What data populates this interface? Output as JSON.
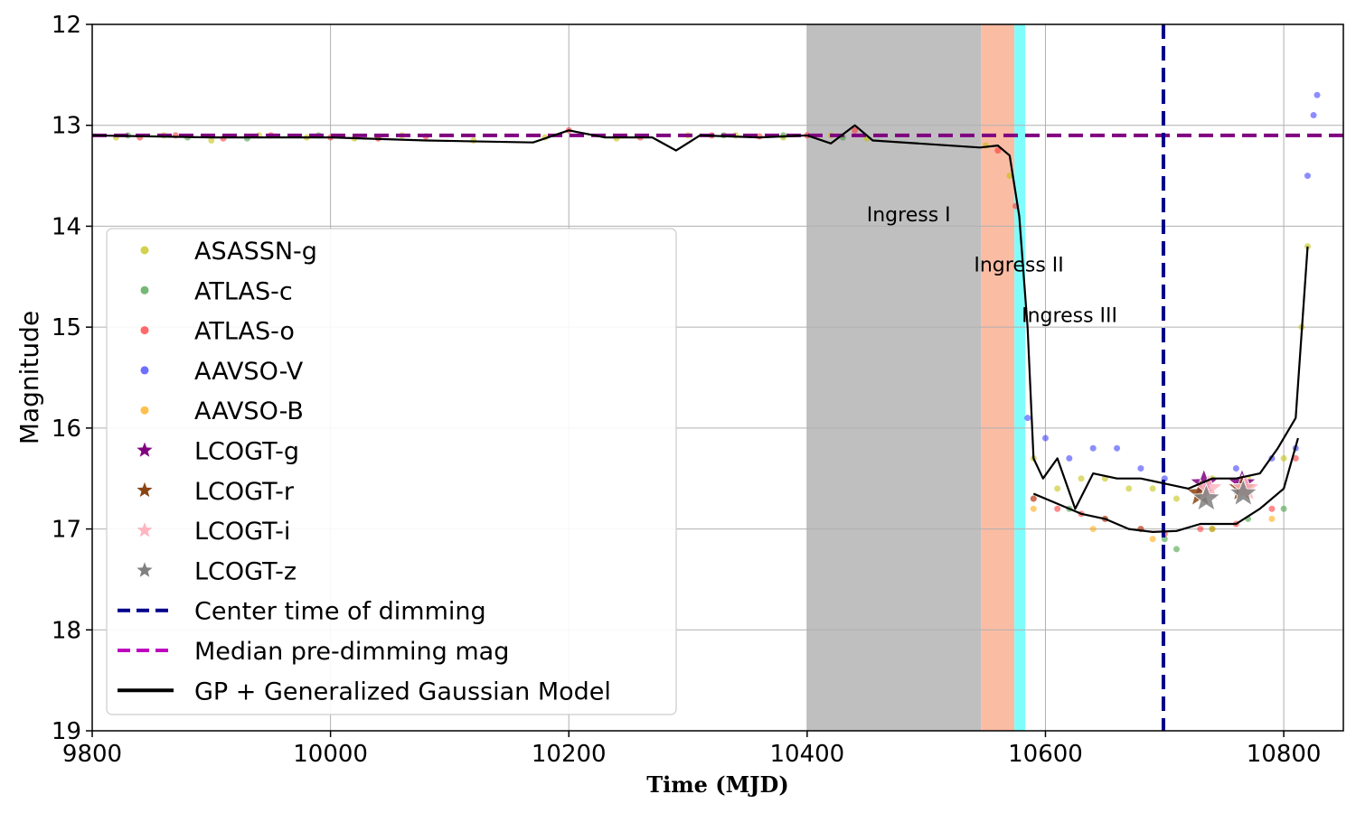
{
  "chart_data": {
    "type": "scatter",
    "xlabel": "Time (MJD)",
    "ylabel": "Magnitude",
    "xlim": [
      9800,
      10850
    ],
    "ylim": [
      12,
      19
    ],
    "y_inverted": true,
    "grid": true,
    "x_ticks": [
      9800,
      10000,
      10200,
      10400,
      10600,
      10800
    ],
    "y_ticks": [
      12,
      13,
      14,
      15,
      16,
      17,
      18,
      19
    ],
    "legend_position": "center-left",
    "regions": [
      {
        "name": "Ingress I",
        "x0": 10400,
        "x1": 10546,
        "color": "#bfbfbf"
      },
      {
        "name": "Ingress II",
        "x0": 10546,
        "x1": 10574,
        "color": "#fbbca4"
      },
      {
        "name": "Ingress III",
        "x0": 10574,
        "x1": 10583,
        "color": "#7ffdfd"
      }
    ],
    "annotations": [
      {
        "text": "Ingress I",
        "x": 10450,
        "y": 13.95
      },
      {
        "text": "Ingress II",
        "x": 10540,
        "y": 14.45
      },
      {
        "text": "Ingress III",
        "x": 10580,
        "y": 14.95
      }
    ],
    "hlines": [
      {
        "name": "Median pre-dimming mag",
        "y": 13.1,
        "color": "#800080",
        "style": "dashed"
      }
    ],
    "vlines": [
      {
        "name": "Center time of dimming",
        "x": 10699,
        "color": "#00008b",
        "style": "dashed"
      }
    ],
    "series": [
      {
        "name": "ASASSN-g",
        "color": "#bfbf00",
        "marker": "circle",
        "points": [
          [
            9820,
            13.12
          ],
          [
            9860,
            13.1
          ],
          [
            9900,
            13.15
          ],
          [
            9940,
            13.1
          ],
          [
            9980,
            13.12
          ],
          [
            10020,
            13.13
          ],
          [
            10060,
            13.1
          ],
          [
            10120,
            13.15
          ],
          [
            10180,
            13.12
          ],
          [
            10240,
            13.13
          ],
          [
            10300,
            13.1
          ],
          [
            10340,
            13.1
          ],
          [
            10380,
            13.12
          ],
          [
            10420,
            13.1
          ],
          [
            10450,
            13.13
          ],
          [
            10550,
            13.2
          ],
          [
            10570,
            13.5
          ],
          [
            10590,
            16.3
          ],
          [
            10610,
            16.6
          ],
          [
            10630,
            16.5
          ],
          [
            10650,
            16.5
          ],
          [
            10670,
            16.6
          ],
          [
            10690,
            16.6
          ],
          [
            10710,
            16.7
          ],
          [
            10740,
            16.5
          ],
          [
            10770,
            16.5
          ],
          [
            10800,
            16.3
          ],
          [
            10815,
            15.0
          ],
          [
            10820,
            14.2
          ]
        ]
      },
      {
        "name": "ATLAS-c",
        "color": "#3a9a3a",
        "marker": "circle",
        "points": [
          [
            9830,
            13.1
          ],
          [
            9880,
            13.12
          ],
          [
            9930,
            13.13
          ],
          [
            9990,
            13.1
          ],
          [
            10040,
            13.12
          ],
          [
            10330,
            13.1
          ],
          [
            10380,
            13.1
          ],
          [
            10430,
            13.12
          ],
          [
            10590,
            16.7
          ],
          [
            10620,
            16.8
          ],
          [
            10650,
            16.9
          ],
          [
            10680,
            17.0
          ],
          [
            10700,
            17.1
          ],
          [
            10710,
            17.2
          ],
          [
            10740,
            17.0
          ],
          [
            10770,
            16.9
          ],
          [
            10800,
            16.8
          ]
        ]
      },
      {
        "name": "ATLAS-o",
        "color": "#ff2a2a",
        "marker": "circle",
        "points": [
          [
            9840,
            13.12
          ],
          [
            9870,
            13.1
          ],
          [
            9910,
            13.13
          ],
          [
            9950,
            13.1
          ],
          [
            10000,
            13.12
          ],
          [
            10040,
            13.13
          ],
          [
            10080,
            13.11
          ],
          [
            10200,
            13.05
          ],
          [
            10260,
            13.12
          ],
          [
            10320,
            13.1
          ],
          [
            10360,
            13.11
          ],
          [
            10400,
            13.1
          ],
          [
            10440,
            13.05
          ],
          [
            10560,
            13.25
          ],
          [
            10575,
            13.8
          ],
          [
            10590,
            16.7
          ],
          [
            10610,
            16.8
          ],
          [
            10630,
            16.85
          ],
          [
            10650,
            16.9
          ],
          [
            10680,
            17.0
          ],
          [
            10700,
            17.05
          ],
          [
            10730,
            17.0
          ],
          [
            10760,
            16.95
          ],
          [
            10790,
            16.8
          ],
          [
            10810,
            16.3
          ]
        ]
      },
      {
        "name": "AAVSO-V",
        "color": "#3030ff",
        "marker": "circle",
        "points": [
          [
            10585,
            15.9
          ],
          [
            10600,
            16.1
          ],
          [
            10620,
            16.3
          ],
          [
            10640,
            16.2
          ],
          [
            10660,
            16.2
          ],
          [
            10680,
            16.4
          ],
          [
            10700,
            16.5
          ],
          [
            10730,
            16.6
          ],
          [
            10760,
            16.4
          ],
          [
            10790,
            16.3
          ],
          [
            10810,
            16.2
          ],
          [
            10820,
            13.5
          ],
          [
            10825,
            12.9
          ],
          [
            10828,
            12.7
          ]
        ]
      },
      {
        "name": "AAVSO-B",
        "color": "#ffa500",
        "marker": "circle",
        "points": [
          [
            10590,
            16.8
          ],
          [
            10640,
            17.0
          ],
          [
            10690,
            17.1
          ],
          [
            10740,
            17.0
          ],
          [
            10790,
            16.9
          ]
        ]
      },
      {
        "name": "LCOGT-g",
        "color": "#800080",
        "marker": "star",
        "points": [
          [
            10733,
            16.55
          ],
          [
            10765,
            16.55
          ]
        ]
      },
      {
        "name": "LCOGT-r",
        "color": "#8b4513",
        "marker": "star",
        "points": [
          [
            10730,
            16.65
          ],
          [
            10765,
            16.6
          ]
        ]
      },
      {
        "name": "LCOGT-i",
        "color": "#ffb6c1",
        "marker": "star",
        "points": [
          [
            10737,
            16.6
          ],
          [
            10768,
            16.6
          ]
        ]
      },
      {
        "name": "LCOGT-z",
        "color": "#808080",
        "marker": "star",
        "points": [
          [
            10735,
            16.7
          ],
          [
            10766,
            16.65
          ]
        ]
      }
    ],
    "model_curves": [
      {
        "name": "GP + Generalized Gaussian Model",
        "color": "#000000",
        "points": [
          [
            9800,
            13.1
          ],
          [
            9900,
            13.12
          ],
          [
            10000,
            13.12
          ],
          [
            10080,
            13.15
          ],
          [
            10170,
            13.17
          ],
          [
            10200,
            13.05
          ],
          [
            10230,
            13.12
          ],
          [
            10270,
            13.12
          ],
          [
            10290,
            13.25
          ],
          [
            10310,
            13.1
          ],
          [
            10360,
            13.12
          ],
          [
            10400,
            13.1
          ],
          [
            10420,
            13.18
          ],
          [
            10440,
            13.0
          ],
          [
            10455,
            13.15
          ],
          [
            10545,
            13.22
          ],
          [
            10560,
            13.2
          ],
          [
            10570,
            13.3
          ],
          [
            10578,
            13.9
          ],
          [
            10585,
            15.0
          ],
          [
            10590,
            16.3
          ],
          [
            10598,
            16.5
          ],
          [
            10610,
            16.3
          ],
          [
            10625,
            16.8
          ],
          [
            10640,
            16.45
          ],
          [
            10660,
            16.5
          ],
          [
            10680,
            16.5
          ],
          [
            10700,
            16.55
          ],
          [
            10720,
            16.6
          ],
          [
            10740,
            16.5
          ],
          [
            10760,
            16.5
          ],
          [
            10780,
            16.45
          ],
          [
            10795,
            16.2
          ],
          [
            10810,
            15.9
          ],
          [
            10820,
            14.2
          ]
        ]
      },
      {
        "name": "GP + Generalized Gaussian Model (red band)",
        "color": "#000000",
        "points": [
          [
            10590,
            16.65
          ],
          [
            10610,
            16.75
          ],
          [
            10630,
            16.85
          ],
          [
            10650,
            16.9
          ],
          [
            10670,
            17.0
          ],
          [
            10690,
            17.03
          ],
          [
            10710,
            17.02
          ],
          [
            10730,
            16.95
          ],
          [
            10760,
            16.95
          ],
          [
            10780,
            16.8
          ],
          [
            10800,
            16.6
          ],
          [
            10812,
            16.1
          ]
        ]
      }
    ],
    "legend": [
      {
        "label": "ASASSN-g",
        "kind": "dot",
        "color": "#bfbf00"
      },
      {
        "label": "ATLAS-c",
        "kind": "dot",
        "color": "#3a9a3a"
      },
      {
        "label": "ATLAS-o",
        "kind": "dot",
        "color": "#ff2a2a"
      },
      {
        "label": "AAVSO-V",
        "kind": "dot",
        "color": "#3030ff"
      },
      {
        "label": "AAVSO-B",
        "kind": "dot",
        "color": "#ffa500"
      },
      {
        "label": "LCOGT-g",
        "kind": "star",
        "color": "#800080"
      },
      {
        "label": "LCOGT-r",
        "kind": "star",
        "color": "#8b4513"
      },
      {
        "label": "LCOGT-i",
        "kind": "star",
        "color": "#ffb6c1"
      },
      {
        "label": "LCOGT-z",
        "kind": "star",
        "color": "#808080"
      },
      {
        "label": "Center time of dimming",
        "kind": "dash",
        "color": "#00008b"
      },
      {
        "label": "Median pre-dimming mag",
        "kind": "dash",
        "color": "#bf00bf"
      },
      {
        "label": "GP + Generalized Gaussian Model",
        "kind": "line",
        "color": "#000000"
      }
    ]
  }
}
